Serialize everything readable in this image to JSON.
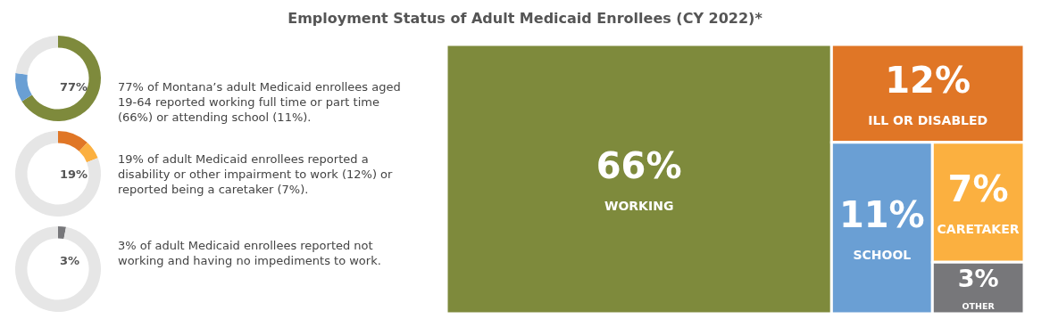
{
  "chart_data": [
    {
      "type": "donut",
      "categories": [
        null,
        null,
        null
      ],
      "values": [
        66,
        11,
        23
      ],
      "colors": [
        "#7e8a3c",
        "#6a9fd4",
        "#e6e6e6"
      ],
      "annotations": [
        "77%",
        "77% of Montana’s adult Medicaid enrollees aged 19-64 reported working full time or part time (66%) or attending school (11%)."
      ]
    },
    {
      "type": "donut",
      "categories": [
        null,
        null,
        null
      ],
      "values": [
        12,
        7,
        81
      ],
      "colors": [
        "#e07626",
        "#fbb040",
        "#e6e6e6"
      ],
      "annotations": [
        "19%",
        "19% of adult Medicaid enrollees reported a disability or other impairment to work (12%) or reported being a caretaker (7%)."
      ]
    },
    {
      "type": "donut",
      "categories": [
        null,
        null
      ],
      "values": [
        3,
        97
      ],
      "colors": [
        "#77777a",
        "#e6e6e6"
      ],
      "annotations": [
        "3%",
        "3% of adult Medicaid enrollees reported not working and having no impediments to work."
      ]
    },
    {
      "type": "other",
      "title": "Employment Status of Adult Medicaid Enrollees (CY 2022)*",
      "categories": [
        "WORKING",
        "ILL OR DISABLED",
        "SCHOOL",
        "CARETAKER",
        "OTHER"
      ],
      "values": [
        66,
        12,
        11,
        7,
        3
      ],
      "value_labels": [
        "66%",
        "12%",
        "11%",
        "7%",
        "3%"
      ],
      "colors": [
        "#7e8a3c",
        "#e07626",
        "#6a9fd4",
        "#fbb040",
        "#77777a"
      ]
    }
  ]
}
